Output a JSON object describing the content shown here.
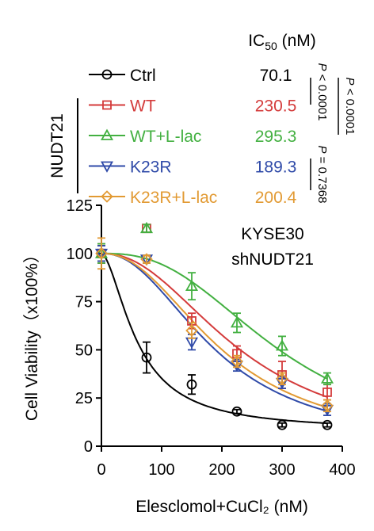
{
  "chart_data": {
    "type": "scatter",
    "xlabel": "Elesclomol+CuCl₂ (nM)",
    "ylabel": "Cell Viability（x100%）",
    "xlim": [
      0,
      400
    ],
    "ylim": [
      0,
      125
    ],
    "xticks": [
      0,
      100,
      200,
      300,
      400
    ],
    "yticks": [
      0,
      25,
      50,
      75,
      100,
      125
    ],
    "annotation": [
      "KYSE30",
      "shNUDT21"
    ],
    "ic50_header": "IC50 (nM)",
    "group_label": "NUDT21",
    "p_values": [
      "P < 0.0001",
      "P < 0.0001",
      "P = 0.7368"
    ],
    "legend_placement": "top",
    "x": [
      0,
      75,
      150,
      225,
      300,
      375
    ],
    "series": [
      {
        "name": "Ctrl",
        "ic50": "70.1",
        "color": "#000000",
        "marker": "circle",
        "values": [
          100,
          46,
          32,
          18,
          11,
          11
        ],
        "errors": [
          4,
          8,
          5,
          1,
          1,
          1
        ]
      },
      {
        "name": "WT",
        "ic50": "230.5",
        "color": "#d43b3b",
        "marker": "square",
        "values": [
          100,
          113,
          65,
          48,
          37,
          28
        ],
        "errors": [
          5,
          2,
          4,
          4,
          7,
          4
        ]
      },
      {
        "name": "WT+L-lac",
        "ic50": "295.3",
        "color": "#43b041",
        "marker": "triangle-up",
        "values": [
          100,
          113,
          83,
          64,
          52,
          35
        ],
        "errors": [
          5,
          2,
          7,
          5,
          5,
          3
        ]
      },
      {
        "name": "K23R",
        "ic50": "189.3",
        "color": "#2f4aa8",
        "marker": "triangle-down",
        "values": [
          100,
          97,
          54,
          42,
          33,
          19
        ],
        "errors": [
          4,
          2,
          4,
          3,
          3,
          3
        ]
      },
      {
        "name": "K23R+L-lac",
        "ic50": "200.4",
        "color": "#e29a33",
        "marker": "diamond",
        "values": [
          100,
          97,
          60,
          44,
          35,
          21
        ],
        "errors": [
          8,
          2,
          4,
          3,
          3,
          3
        ]
      }
    ]
  }
}
